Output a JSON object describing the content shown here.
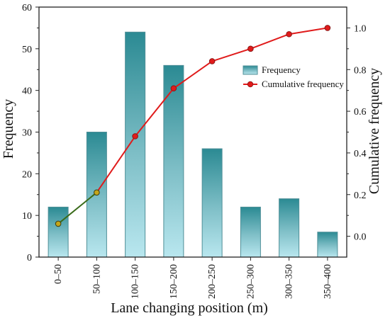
{
  "chart_data": {
    "type": "bar",
    "categories": [
      "0–50",
      "50–100",
      "100–150",
      "150–200",
      "200–250",
      "250–300",
      "300–350",
      "350–400"
    ],
    "series": [
      {
        "name": "Frequency",
        "type": "bar",
        "axis": "left",
        "values": [
          12,
          30,
          54,
          46,
          26,
          12,
          14,
          6
        ]
      },
      {
        "name": "Cumulative frequency",
        "type": "line",
        "axis": "right",
        "values": [
          0.06,
          0.21,
          0.48,
          0.71,
          0.84,
          0.9,
          0.97,
          1.0
        ]
      }
    ],
    "xlabel": "Lane changing position (m)",
    "ylabel": "Frequency",
    "y2label": "Cumulative frequency",
    "ylim": [
      0,
      60
    ],
    "y2lim": [
      -0.1,
      1.1
    ],
    "yticks": [
      "0",
      "10",
      "20",
      "30",
      "40",
      "50",
      "60"
    ],
    "y2ticks": [
      "0.0",
      "0.2",
      "0.4",
      "0.6",
      "0.8",
      "1.0"
    ],
    "legend_position": "top-right inside plot",
    "grid": false,
    "colors": {
      "bar_top": "#2b8a93",
      "bar_mid": "#7fbfc7",
      "bar_bottom": "#b9e7ef",
      "bar_stroke": "#4f8f97",
      "line": "#e01b1b",
      "line_segment_left": "#3a6b1a",
      "marker_fill": "#e11b1b",
      "axis": "#222222"
    }
  }
}
